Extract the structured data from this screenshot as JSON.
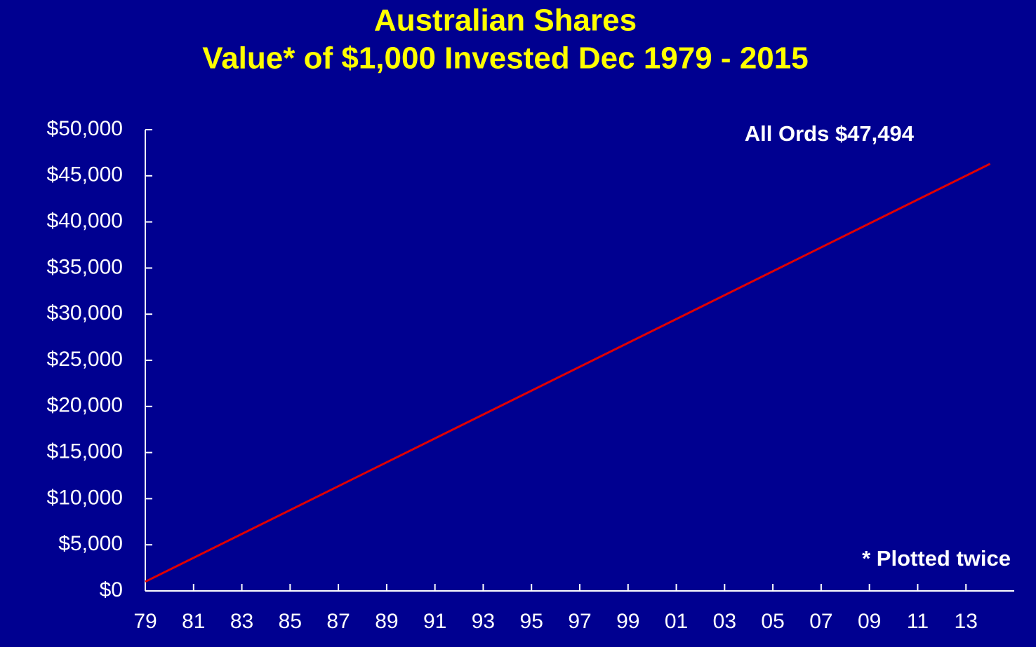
{
  "chart_data": {
    "type": "line",
    "title": [
      "Australian Shares",
      "Value* of $1,000 Invested Dec 1979 - 2015"
    ],
    "annotations": [
      "All Ords $47,494",
      "* Plotted twice"
    ],
    "series": [
      {
        "name": "All Ords",
        "color": "#e00000",
        "x": [
          1979,
          2014
        ],
        "values": [
          1000,
          46300
        ]
      }
    ],
    "xlim": [
      1979,
      2015
    ],
    "xticks": [
      {
        "value": 1979,
        "label": "79"
      },
      {
        "value": 1981,
        "label": "81"
      },
      {
        "value": 1983,
        "label": "83"
      },
      {
        "value": 1985,
        "label": "85"
      },
      {
        "value": 1987,
        "label": "87"
      },
      {
        "value": 1989,
        "label": "89"
      },
      {
        "value": 1991,
        "label": "91"
      },
      {
        "value": 1993,
        "label": "93"
      },
      {
        "value": 1995,
        "label": "95"
      },
      {
        "value": 1997,
        "label": "97"
      },
      {
        "value": 1999,
        "label": "99"
      },
      {
        "value": 2001,
        "label": "01"
      },
      {
        "value": 2003,
        "label": "03"
      },
      {
        "value": 2005,
        "label": "05"
      },
      {
        "value": 2007,
        "label": "07"
      },
      {
        "value": 2009,
        "label": "09"
      },
      {
        "value": 2011,
        "label": "11"
      },
      {
        "value": 2013,
        "label": "13"
      }
    ],
    "ylim": [
      0,
      50000
    ],
    "yticks": [
      {
        "value": 0,
        "label": "$0"
      },
      {
        "value": 5000,
        "label": "$5,000"
      },
      {
        "value": 10000,
        "label": "$10,000"
      },
      {
        "value": 15000,
        "label": "$15,000"
      },
      {
        "value": 20000,
        "label": "$20,000"
      },
      {
        "value": 25000,
        "label": "$25,000"
      },
      {
        "value": 30000,
        "label": "$30,000"
      },
      {
        "value": 35000,
        "label": "$35,000"
      },
      {
        "value": 40000,
        "label": "$40,000"
      },
      {
        "value": 45000,
        "label": "$45,000"
      },
      {
        "value": 50000,
        "label": "$50,000"
      }
    ],
    "grid": false
  }
}
